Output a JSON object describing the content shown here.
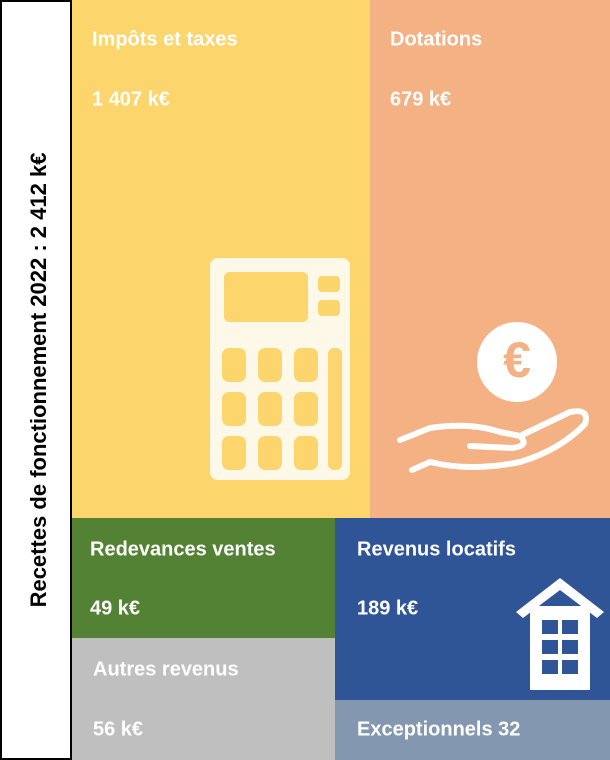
{
  "title": "Recettes de fonctionnement 2022 : 2 412 k€",
  "tiles": [
    {
      "label": "Impôts et taxes",
      "amount": "1 407 k€"
    },
    {
      "label": "Dotations",
      "amount": "679 k€"
    },
    {
      "label": "Redevances ventes",
      "amount": "49 k€"
    },
    {
      "label": "Revenus locatifs",
      "amount": "189 k€"
    },
    {
      "label": "Autres revenus",
      "amount": "56 k€"
    },
    {
      "label": "Exceptionnels 32"
    }
  ]
}
